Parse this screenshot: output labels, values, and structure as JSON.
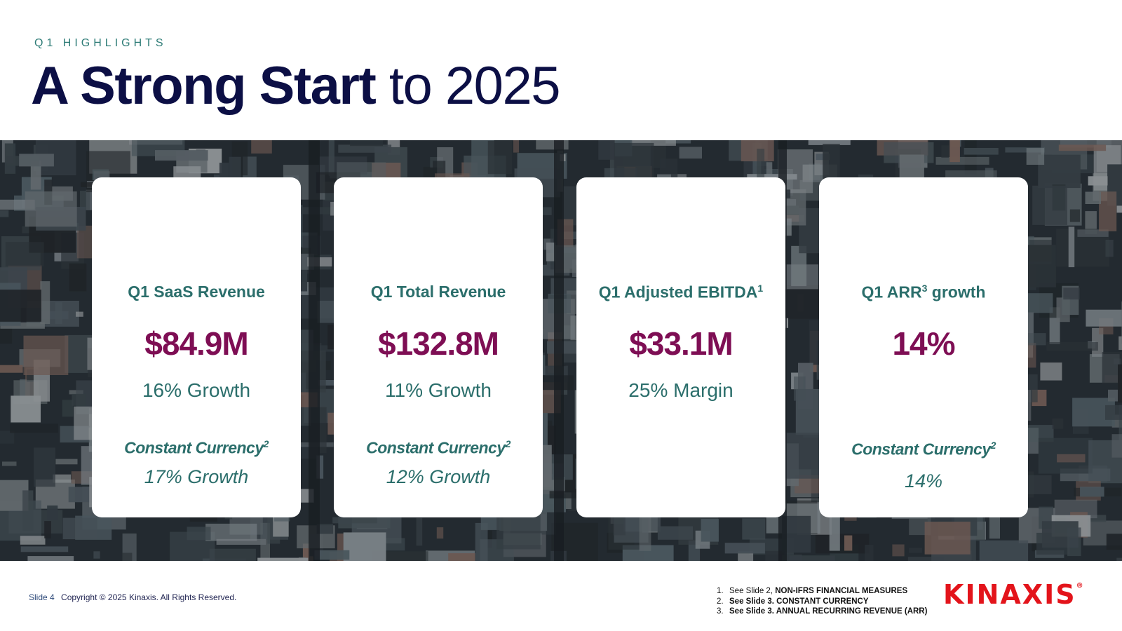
{
  "header": {
    "eyebrow": "Q1 HIGHLIGHTS",
    "title_bold": "A Strong Start",
    "title_light": " to 2025"
  },
  "cards": [
    {
      "label": "Q1 SaaS Revenue",
      "label_sup": "",
      "value": "$84.9M",
      "growth": "16% Growth",
      "cc_label": "Constant Currency",
      "cc_sup": "2",
      "cc_value": "17% Growth"
    },
    {
      "label": "Q1 Total Revenue",
      "label_sup": "",
      "value": "$132.8M",
      "growth": "11% Growth",
      "cc_label": "Constant Currency",
      "cc_sup": "2",
      "cc_value": "12% Growth"
    },
    {
      "label": "Q1 Adjusted EBITDA",
      "label_sup": "1",
      "value": "$33.1M",
      "growth": "25% Margin",
      "cc_label": "",
      "cc_sup": "",
      "cc_value": ""
    },
    {
      "label": "Q1 ARR",
      "label_sup": "3",
      "label_suffix": " growth",
      "value": "14%",
      "growth": "",
      "cc_label": "Constant Currency",
      "cc_sup": "2",
      "cc_value": "14%"
    }
  ],
  "footer": {
    "slide": "Slide 4",
    "copyright": "Copyright © 2025 Kinaxis. All Rights Reserved.",
    "notes": [
      {
        "num": "1.",
        "prefix": "See Slide 2, ",
        "bold": "NON-IFRS FINANCIAL MEASURES"
      },
      {
        "num": "2.",
        "prefix": "See Slide 3. ",
        "bold": "CONSTANT CURRENCY"
      },
      {
        "num": "3.",
        "prefix": "See Slide 3. ",
        "bold": "ANNUAL RECURRING REVENUE (ARR)"
      }
    ],
    "logo": "KINAXIS",
    "logo_mark": "®"
  },
  "colors": {
    "navy": "#0c0f45",
    "teal": "#2b6e6b",
    "plum": "#7e0e54",
    "brand_red": "#e3141b"
  }
}
